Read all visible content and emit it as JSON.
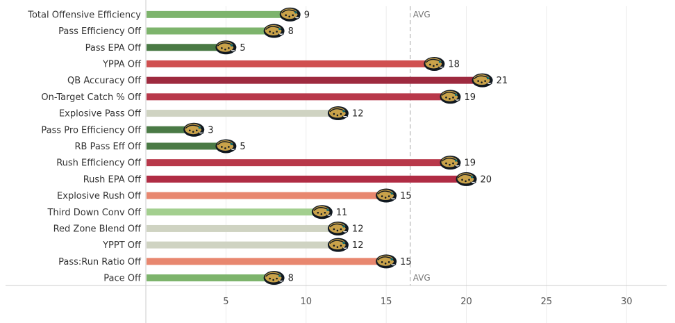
{
  "chart_data": {
    "type": "bar",
    "orientation": "horizontal",
    "categories": [
      "Total Offensive Efficiency",
      "Pass Efficiency Off",
      "Pass EPA Off",
      "YPPA Off",
      "QB Accuracy Off",
      "On-Target Catch % Off",
      "Explosive Pass Off",
      "Pass Pro Efficiency Off",
      "RB Pass Eff Off",
      "Rush Efficiency Off",
      "Rush EPA Off",
      "Explosive Rush Off",
      "Third Down Conv Off",
      "Red Zone Blend Off",
      "YPPT Off",
      "Pass:Run Ratio Off",
      "Pace Off"
    ],
    "values": [
      9,
      8,
      5,
      18,
      21,
      19,
      12,
      3,
      5,
      19,
      20,
      15,
      11,
      12,
      12,
      15,
      8
    ],
    "colors": [
      "#7db46c",
      "#7db46c",
      "#4a7a45",
      "#d05050",
      "#9e2a3f",
      "#b8384a",
      "#cfd3c2",
      "#4a7a45",
      "#4a7a45",
      "#b8384a",
      "#b02c44",
      "#e8876f",
      "#a3cf8f",
      "#cfd3c2",
      "#cfd3c2",
      "#e8876f",
      "#7db46c"
    ],
    "xticks": [
      5,
      10,
      15,
      20,
      25,
      30
    ],
    "xlim": [
      0,
      32.5
    ],
    "avg": 16.5,
    "avg_label": "AVG",
    "grid": true
  }
}
